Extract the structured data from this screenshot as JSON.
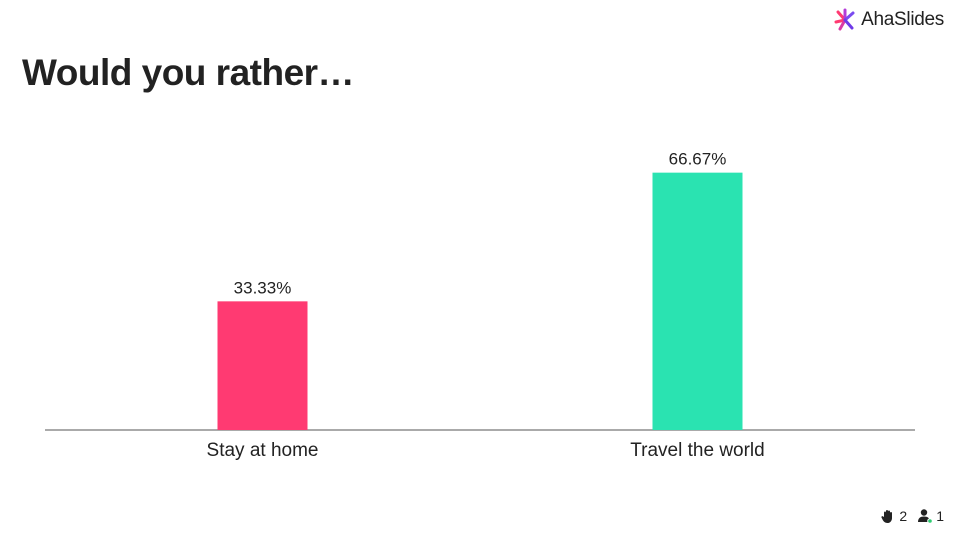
{
  "brand": {
    "name": "AhaSlides",
    "logo_icon": "ahaslides-logo-icon"
  },
  "title": "Would you rather…",
  "chart_data": {
    "type": "bar",
    "categories": [
      "Stay at home",
      "Travel the world"
    ],
    "values": [
      33.33,
      66.67
    ],
    "value_labels": [
      "33.33%",
      "66.67%"
    ],
    "colors": [
      "#ff3a72",
      "#2ae3b1"
    ],
    "ylim": [
      0,
      100
    ],
    "grid": false
  },
  "footer": {
    "reactions_icon": "hand-icon",
    "reactions_count": "2",
    "participants_icon": "user-icon",
    "participants_count": "1"
  }
}
